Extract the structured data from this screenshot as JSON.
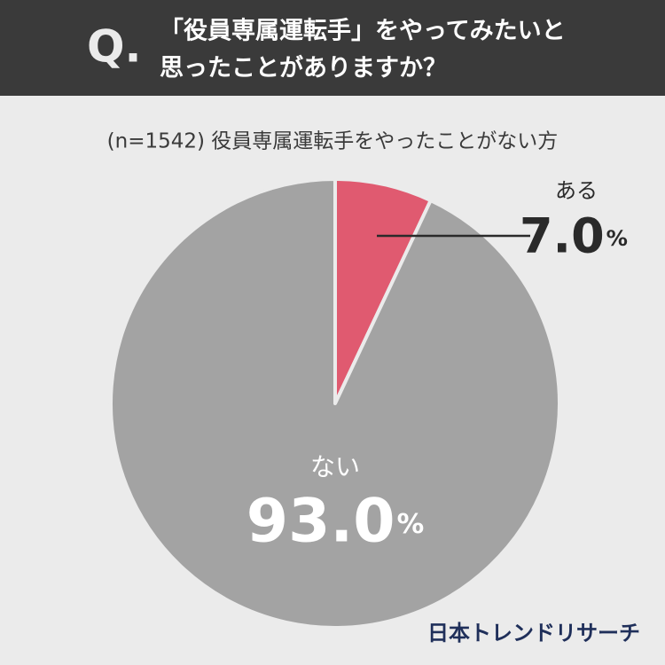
{
  "chart_data": {
    "type": "pie",
    "title_prefix": "Q.",
    "title": [
      "「役員専属運転手」をやってみたいと",
      "思ったことがありますか？"
    ],
    "subtitle": "(n=1542) 役員専属運転手をやったことがない方",
    "categories": [
      "ある",
      "ない"
    ],
    "values": [
      7.0,
      93.0
    ],
    "value_labels": [
      "7.0%",
      "93.0%"
    ],
    "colors": [
      "#e05a70",
      "#a3a3a3"
    ],
    "source": "日本トレンドリサーチ"
  }
}
